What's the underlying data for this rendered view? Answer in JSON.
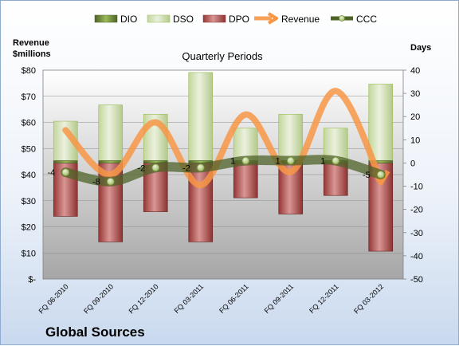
{
  "chart_data": {
    "type": "bar",
    "title": "Quarterly Periods",
    "company": "Global Sources",
    "left_axis": {
      "label_lines": [
        "Revenue",
        "$millions"
      ],
      "range": [
        0,
        80
      ],
      "ticks": [
        "$-",
        "$10",
        "$20",
        "$30",
        "$40",
        "$50",
        "$60",
        "$70",
        "$80"
      ]
    },
    "right_axis": {
      "label": "Days",
      "range": [
        -50,
        40
      ],
      "ticks": [
        "-50",
        "-40",
        "-30",
        "-20",
        "-10",
        "0",
        "10",
        "20",
        "30",
        "40"
      ]
    },
    "categories": [
      "FQ 06-2010",
      "FQ 09-2010",
      "FQ 12-2010",
      "FQ 03-2011",
      "FQ 06-2011",
      "FQ 09-2011",
      "FQ 12-2011",
      "FQ 03-2012"
    ],
    "series": [
      {
        "name": "DIO",
        "kind": "stacked-bar",
        "axis": "days",
        "color": "#77933c",
        "values": [
          1,
          1,
          1,
          1,
          1,
          1,
          1,
          1
        ]
      },
      {
        "name": "DSO",
        "kind": "stacked-bar",
        "axis": "days",
        "color": "#d7e4bd",
        "values": [
          17,
          24,
          20,
          38,
          14,
          20,
          14,
          33
        ]
      },
      {
        "name": "DPO",
        "kind": "bar-below",
        "axis": "days",
        "color": "#c0504d",
        "values": [
          23,
          34,
          21,
          34,
          15,
          22,
          14,
          38
        ]
      },
      {
        "name": "Revenue",
        "kind": "line",
        "axis": "revenue",
        "color": "#f79646",
        "values": [
          57,
          40,
          60,
          36,
          63,
          41,
          72,
          38
        ]
      },
      {
        "name": "CCC",
        "kind": "line",
        "axis": "days",
        "color": "#4f6228",
        "values": [
          -4,
          -8,
          -2,
          -2,
          1,
          1,
          1,
          -5
        ]
      }
    ],
    "ccc_labels": [
      "-4",
      "-8",
      "-2",
      "-2",
      "1",
      "1",
      "1",
      "-5"
    ],
    "legend_position": "top"
  }
}
